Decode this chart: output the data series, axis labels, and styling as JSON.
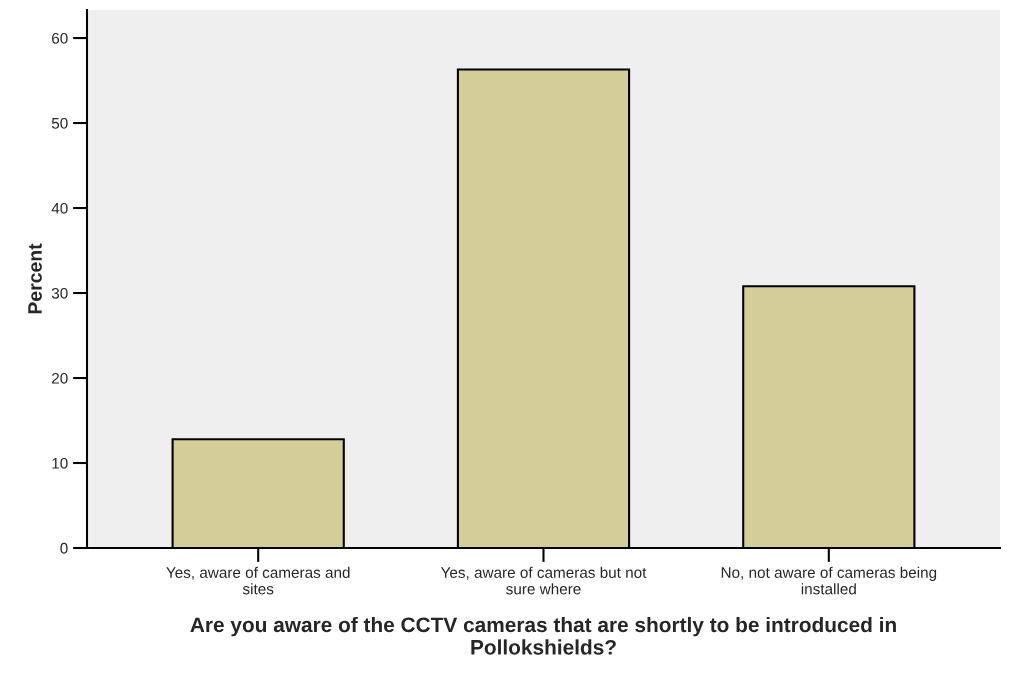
{
  "chart_data": {
    "type": "bar",
    "xlabel": "Are you aware of the CCTV cameras that are shortly to be introduced in Pollokshields?",
    "ylabel": "Percent",
    "categories": [
      "Yes, aware of cameras and sites",
      "Yes, aware of cameras but not sure where",
      "No, not aware of cameras being installed"
    ],
    "values": [
      12.8,
      56.3,
      30.8
    ],
    "color": "#d3cd98",
    "ylim": [
      0,
      63.3
    ],
    "yticks": [
      0,
      10,
      20,
      30,
      40,
      50,
      60
    ],
    "grid": false,
    "legend": false
  }
}
